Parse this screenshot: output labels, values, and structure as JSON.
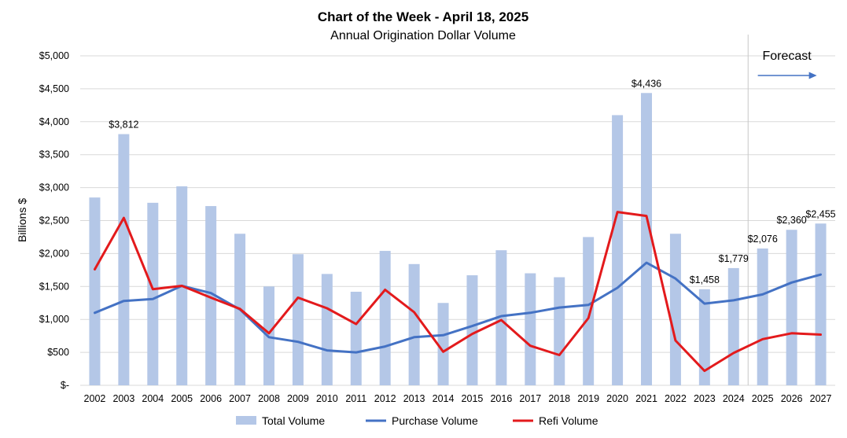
{
  "chart_data": {
    "type": "bar",
    "title": "Chart of the Week - April 18, 2025",
    "subtitle": "Annual Origination Dollar Volume",
    "ylabel": "Billions $",
    "xlabel": "",
    "ylim": [
      0,
      5000
    ],
    "yticks": [
      0,
      500,
      1000,
      1500,
      2000,
      2500,
      3000,
      3500,
      4000,
      4500,
      5000
    ],
    "ytick_labels": [
      "$-",
      "$500",
      "$1,000",
      "$1,500",
      "$2,000",
      "$2,500",
      "$3,000",
      "$3,500",
      "$4,000",
      "$4,500",
      "$5,000"
    ],
    "grid": "horizontal",
    "legend_position": "bottom",
    "categories": [
      "2002",
      "2003",
      "2004",
      "2005",
      "2006",
      "2007",
      "2008",
      "2009",
      "2010",
      "2011",
      "2012",
      "2013",
      "2014",
      "2015",
      "2016",
      "2017",
      "2018",
      "2019",
      "2020",
      "2021",
      "2022",
      "2023",
      "2024",
      "2025",
      "2026",
      "2027"
    ],
    "series": [
      {
        "name": "Total Volume",
        "kind": "bar",
        "color": "#b4c7e7",
        "values": [
          2850,
          3812,
          2770,
          3020,
          2720,
          2300,
          1500,
          1990,
          1690,
          1420,
          2040,
          1840,
          1250,
          1670,
          2050,
          1700,
          1640,
          2250,
          4100,
          4436,
          2300,
          1458,
          1779,
          2076,
          2360,
          2455
        ]
      },
      {
        "name": "Purchase Volume",
        "kind": "line",
        "color": "#4472c4",
        "values": [
          1100,
          1280,
          1310,
          1510,
          1400,
          1150,
          730,
          660,
          530,
          500,
          590,
          730,
          760,
          900,
          1050,
          1100,
          1180,
          1220,
          1480,
          1860,
          1620,
          1240,
          1290,
          1380,
          1560,
          1680
        ]
      },
      {
        "name": "Refi Volume",
        "kind": "line",
        "color": "#e31a1c",
        "values": [
          1760,
          2540,
          1460,
          1510,
          1330,
          1160,
          790,
          1330,
          1170,
          930,
          1450,
          1110,
          510,
          780,
          990,
          600,
          460,
          1020,
          2630,
          2570,
          680,
          220,
          490,
          700,
          790,
          770
        ]
      }
    ],
    "data_labels": [
      {
        "category": "2003",
        "text": "$3,812"
      },
      {
        "category": "2021",
        "text": "$4,436"
      },
      {
        "category": "2023",
        "text": "$1,458"
      },
      {
        "category": "2024",
        "text": "$1,779"
      },
      {
        "category": "2025",
        "text": "$2,076"
      },
      {
        "category": "2026",
        "text": "$2,360"
      },
      {
        "category": "2027",
        "text": "$2,455"
      }
    ],
    "forecast": {
      "label": "Forecast",
      "divider_after": "2024",
      "arrow_color": "#4472c4"
    }
  }
}
